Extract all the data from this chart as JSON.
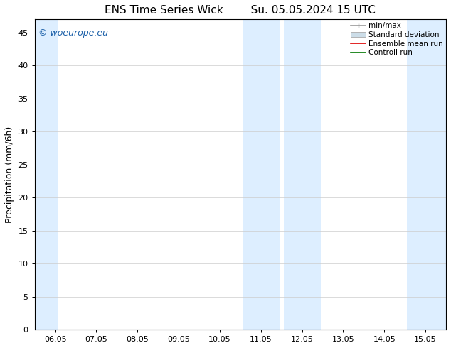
{
  "title_left": "ENS Time Series Wick",
  "title_right": "Su. 05.05.2024 15 UTC",
  "ylabel": "Precipitation (mm/6h)",
  "ylim": [
    0,
    47
  ],
  "yticks": [
    0,
    5,
    10,
    15,
    20,
    25,
    30,
    35,
    40,
    45
  ],
  "xtick_labels": [
    "06.05",
    "07.05",
    "08.05",
    "09.05",
    "10.05",
    "11.05",
    "12.05",
    "13.05",
    "14.05",
    "15.05"
  ],
  "xtick_positions": [
    0,
    1,
    2,
    3,
    4,
    5,
    6,
    7,
    8,
    9
  ],
  "xlim": [
    -0.5,
    9.5
  ],
  "shaded_bands": [
    {
      "xmin": -0.5,
      "xmax": 0.08
    },
    {
      "xmin": 4.55,
      "xmax": 5.45
    },
    {
      "xmin": 5.55,
      "xmax": 6.45
    },
    {
      "xmin": 8.55,
      "xmax": 9.5
    }
  ],
  "band_color": "#ddeeff",
  "background_color": "#ffffff",
  "watermark_text": "© woeurope.eu",
  "watermark_color": "#1a5fa8",
  "legend_entries": [
    {
      "label": "min/max"
    },
    {
      "label": "Standard deviation"
    },
    {
      "label": "Ensemble mean run"
    },
    {
      "label": "Controll run"
    }
  ],
  "legend_line_colors": [
    "#999999",
    "#bbccdd",
    "#dd0000",
    "#007700"
  ],
  "title_fontsize": 11,
  "ylabel_fontsize": 9,
  "tick_fontsize": 8,
  "legend_fontsize": 7.5,
  "watermark_fontsize": 9
}
